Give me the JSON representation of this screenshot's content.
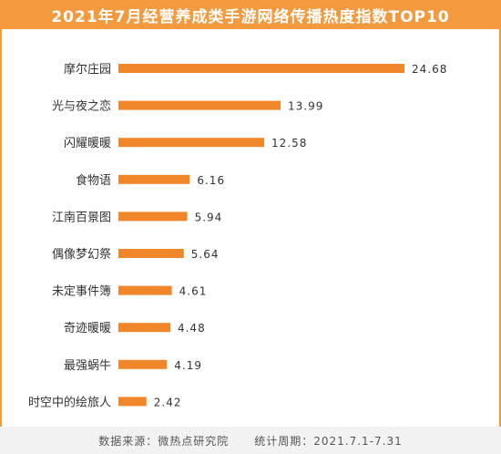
{
  "title": "2021年7月经营养成类手游网络传播热度指数TOP10",
  "footer": {
    "source": "数据来源：微热点研究院",
    "period": "统计周期：2021.7.1-7.31"
  },
  "colors": {
    "accent": "#F39A3F",
    "bar": "#F0862A"
  },
  "chart_data": {
    "type": "bar",
    "orientation": "horizontal",
    "title": "2021年7月经营养成类手游网络传播热度指数TOP10",
    "categories": [
      "摩尔庄园",
      "光与夜之恋",
      "闪耀暖暖",
      "食物语",
      "江南百景图",
      "偶像梦幻祭",
      "未定事件簿",
      "奇迹暖暖",
      "最强蜗牛",
      "时空中的绘旅人"
    ],
    "values": [
      24.68,
      13.99,
      12.58,
      6.16,
      5.94,
      5.64,
      4.61,
      4.48,
      4.19,
      2.42
    ],
    "value_labels": [
      "24.68",
      "13.99",
      "12.58",
      "6.16",
      "5.94",
      "5.64",
      "4.61",
      "4.48",
      "4.19",
      "2.42"
    ],
    "xlim": [
      0,
      24.68
    ],
    "grid": false,
    "legend": "none"
  }
}
